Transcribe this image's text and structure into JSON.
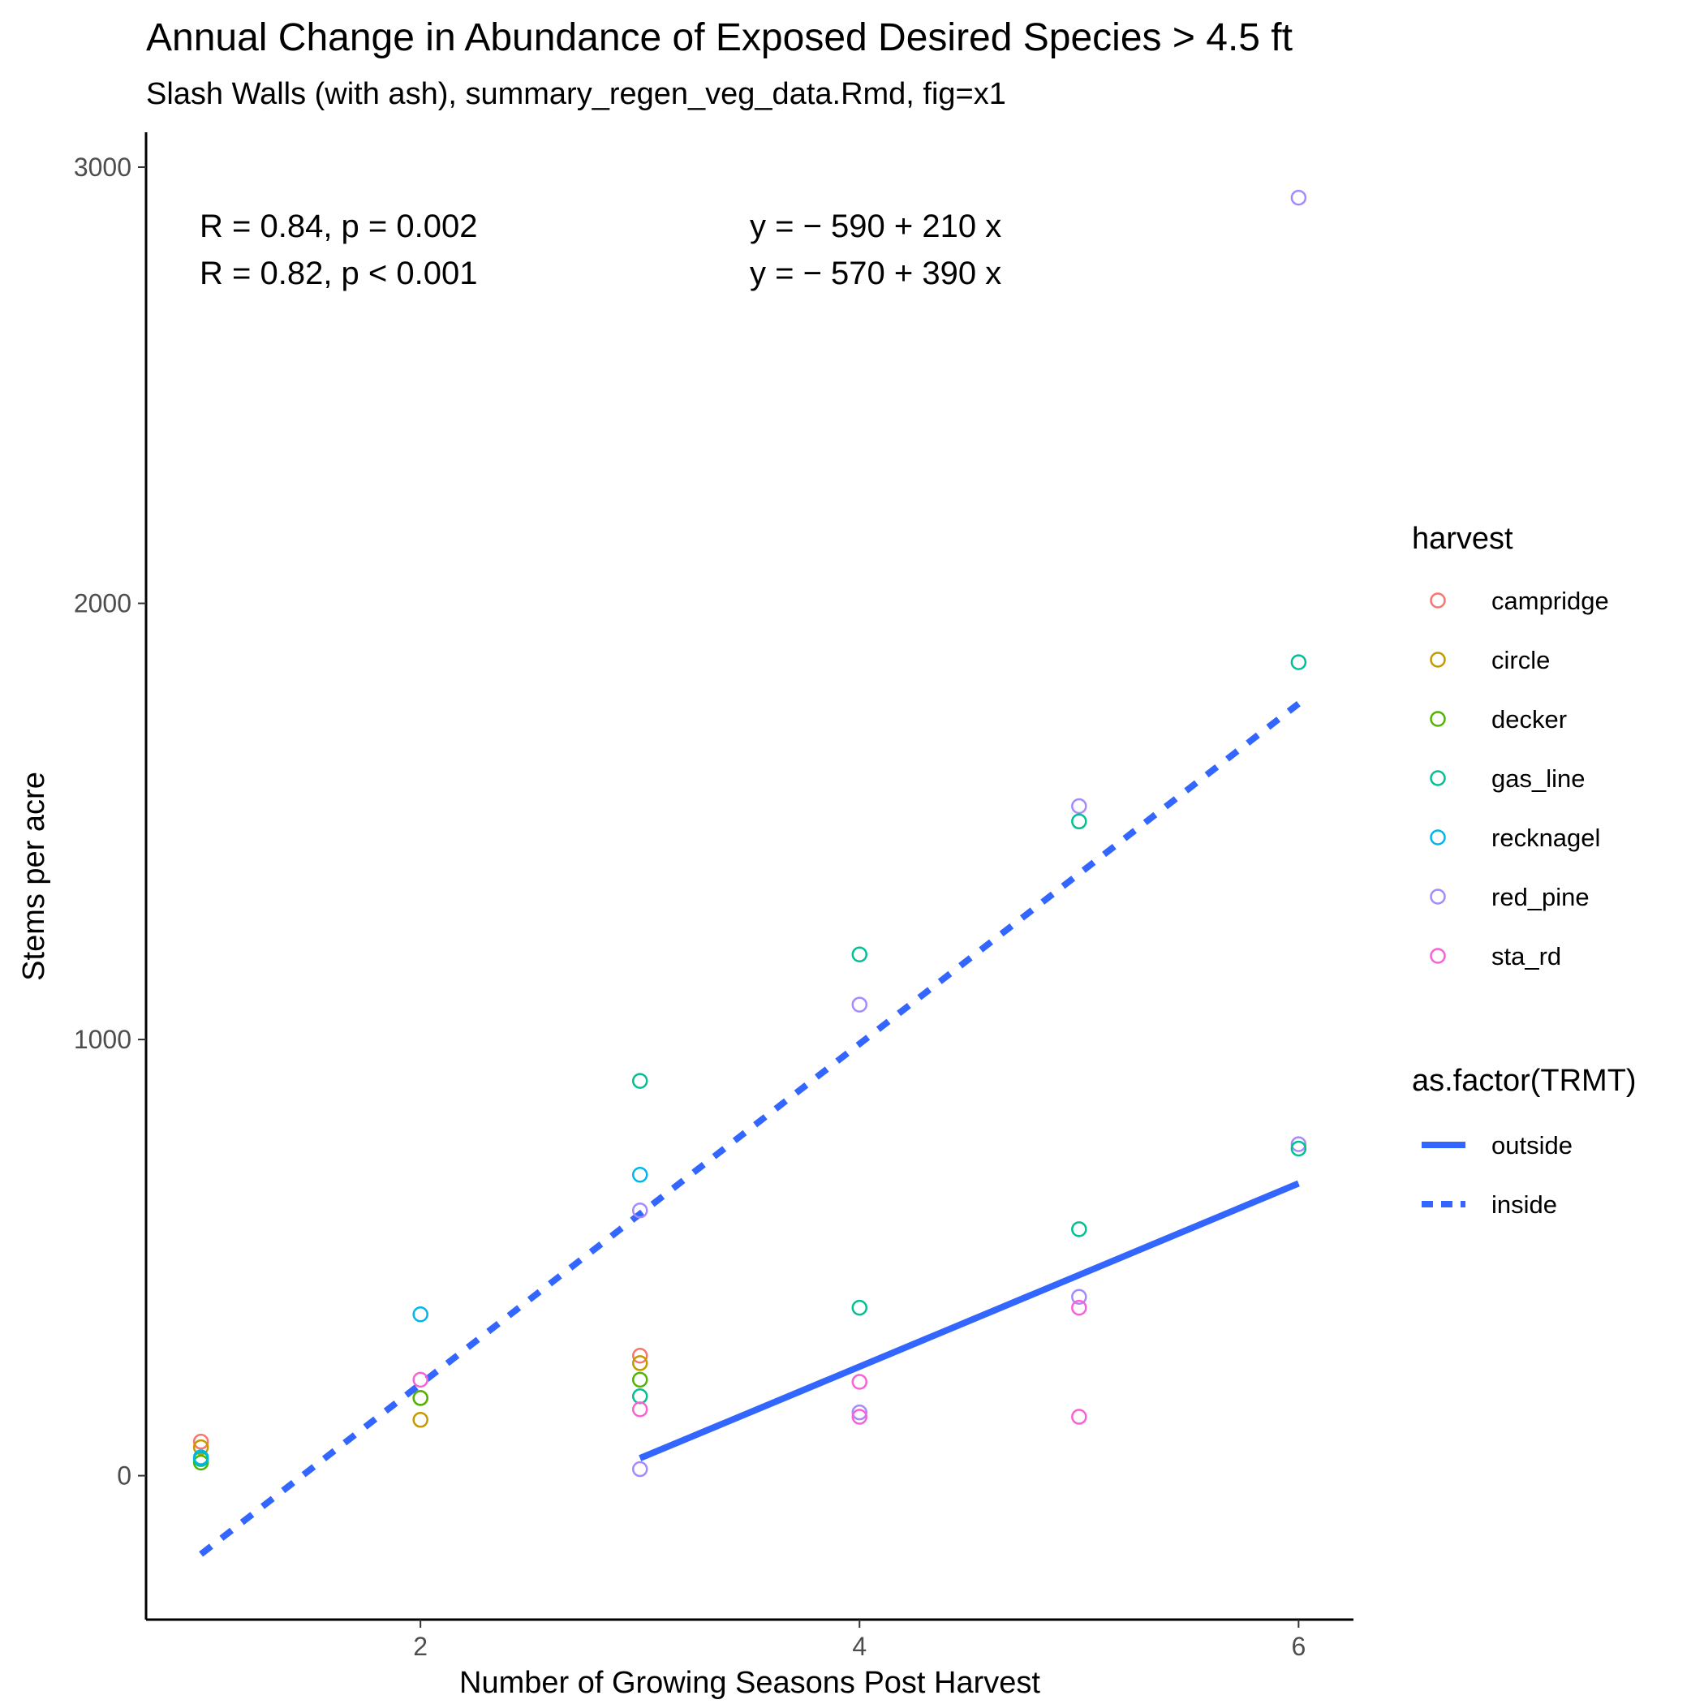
{
  "chart_data": {
    "type": "scatter",
    "title": "Annual Change in Abundance of Exposed Desired Species > 4.5 ft",
    "subtitle": "Slash Walls (with ash), summary_regen_veg_data.Rmd, fig=x1",
    "xlabel": "Number of Growing Seasons Post Harvest",
    "ylabel": "Stems per acre",
    "xlim": [
      0.75,
      6.25
    ],
    "ylim": [
      -330,
      3080
    ],
    "x_ticks": [
      2,
      4,
      6
    ],
    "y_ticks": [
      0,
      1000,
      2000,
      3000
    ],
    "grid": false,
    "legend_position": "right",
    "colors": {
      "campridge": "#F8766D",
      "circle": "#C49A00",
      "decker": "#53B400",
      "gas_line": "#00C094",
      "recknagel": "#00B6EB",
      "red_pine": "#A58AFF",
      "sta_rd": "#FB61D7",
      "fit_line": "#3366FF"
    },
    "color_legend": {
      "title": "harvest",
      "items": [
        "campridge",
        "circle",
        "decker",
        "gas_line",
        "recknagel",
        "red_pine",
        "sta_rd"
      ]
    },
    "linetype_legend": {
      "title": "as.factor(TRMT)",
      "items": [
        {
          "label": "outside",
          "dash": "solid"
        },
        {
          "label": "inside",
          "dash": "dashed"
        }
      ]
    },
    "points": [
      {
        "x": 1,
        "y": 78,
        "harvest": "campridge"
      },
      {
        "x": 1,
        "y": 65,
        "harvest": "circle"
      },
      {
        "x": 1,
        "y": 30,
        "harvest": "decker"
      },
      {
        "x": 1,
        "y": 38,
        "harvest": "gas_line"
      },
      {
        "x": 1,
        "y": 42,
        "harvest": "recknagel"
      },
      {
        "x": 2,
        "y": 370,
        "harvest": "recknagel"
      },
      {
        "x": 2,
        "y": 220,
        "harvest": "sta_rd"
      },
      {
        "x": 2,
        "y": 178,
        "harvest": "circle"
      },
      {
        "x": 2,
        "y": 178,
        "harvest": "decker"
      },
      {
        "x": 2,
        "y": 128,
        "harvest": "circle"
      },
      {
        "x": 3,
        "y": 905,
        "harvest": "gas_line"
      },
      {
        "x": 3,
        "y": 690,
        "harvest": "recknagel"
      },
      {
        "x": 3,
        "y": 608,
        "harvest": "red_pine"
      },
      {
        "x": 3,
        "y": 275,
        "harvest": "campridge"
      },
      {
        "x": 3,
        "y": 258,
        "harvest": "circle"
      },
      {
        "x": 3,
        "y": 220,
        "harvest": "decker"
      },
      {
        "x": 3,
        "y": 182,
        "harvest": "gas_line"
      },
      {
        "x": 3,
        "y": 152,
        "harvest": "sta_rd"
      },
      {
        "x": 3,
        "y": 15,
        "harvest": "red_pine"
      },
      {
        "x": 4,
        "y": 1195,
        "harvest": "gas_line"
      },
      {
        "x": 4,
        "y": 1080,
        "harvest": "red_pine"
      },
      {
        "x": 4,
        "y": 385,
        "harvest": "gas_line"
      },
      {
        "x": 4,
        "y": 215,
        "harvest": "sta_rd"
      },
      {
        "x": 4,
        "y": 145,
        "harvest": "red_pine"
      },
      {
        "x": 4,
        "y": 135,
        "harvest": "sta_rd"
      },
      {
        "x": 5,
        "y": 1535,
        "harvest": "red_pine"
      },
      {
        "x": 5,
        "y": 1500,
        "harvest": "gas_line"
      },
      {
        "x": 5,
        "y": 565,
        "harvest": "gas_line"
      },
      {
        "x": 5,
        "y": 410,
        "harvest": "red_pine"
      },
      {
        "x": 5,
        "y": 385,
        "harvest": "sta_rd"
      },
      {
        "x": 5,
        "y": 135,
        "harvest": "sta_rd"
      },
      {
        "x": 6,
        "y": 2930,
        "harvest": "red_pine"
      },
      {
        "x": 6,
        "y": 1865,
        "harvest": "gas_line"
      },
      {
        "x": 6,
        "y": 760,
        "harvest": "red_pine"
      },
      {
        "x": 6,
        "y": 750,
        "harvest": "gas_line"
      }
    ],
    "fit_lines": [
      {
        "treatment": "inside",
        "dash": "dashed",
        "x_range": [
          1,
          6
        ],
        "intercept": -570,
        "slope": 390
      },
      {
        "treatment": "outside",
        "dash": "solid",
        "x_range": [
          3,
          6
        ],
        "intercept": -590,
        "slope": 210
      }
    ],
    "annotations": [
      {
        "r": "R = 0.84, p = 0.002",
        "eq": "y = − 590 + 210 x"
      },
      {
        "r": "R = 0.82, p < 0.001",
        "eq": "y = − 570 + 390 x"
      }
    ]
  }
}
